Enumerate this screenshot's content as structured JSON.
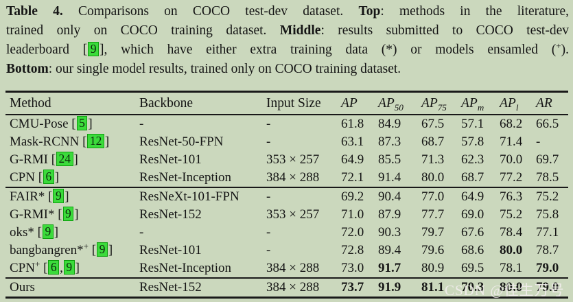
{
  "colors": {
    "background": "#cbd8bd",
    "text": "#151515",
    "citation_fill": "#3bdb3b",
    "citation_border": "#0e9f0e",
    "rule": "#191919",
    "watermark": "#f2ecee"
  },
  "caption": {
    "lines": [
      {
        "justify": true,
        "segments": [
          {
            "t": "b",
            "s": "Table 4."
          },
          {
            "t": "n",
            "s": " Comparisons on COCO test-dev dataset. "
          },
          {
            "t": "b",
            "s": "Top"
          },
          {
            "t": "n",
            "s": ": methods in the literature,"
          }
        ]
      },
      {
        "justify": true,
        "segments": [
          {
            "t": "n",
            "s": "trained only on COCO training dataset. "
          },
          {
            "t": "b",
            "s": "Middle"
          },
          {
            "t": "n",
            "s": ": results submitted to COCO test-dev"
          }
        ]
      },
      {
        "justify": true,
        "segments": [
          {
            "t": "n",
            "s": "leaderboard ["
          },
          {
            "t": "cite",
            "s": "9"
          },
          {
            "t": "n",
            "s": "], which have either extra training data (*) or models ensamled ("
          },
          {
            "t": "sup",
            "s": "+"
          },
          {
            "t": "n",
            "s": ")."
          }
        ]
      },
      {
        "justify": false,
        "segments": [
          {
            "t": "b",
            "s": "Bottom"
          },
          {
            "t": "n",
            "s": ": our single model results, trained only on COCO training dataset."
          }
        ]
      }
    ]
  },
  "table": {
    "headers": [
      {
        "label": "Method",
        "italic": false,
        "sub": ""
      },
      {
        "label": "Backbone",
        "italic": false,
        "sub": ""
      },
      {
        "label": "Input Size",
        "italic": false,
        "sub": ""
      },
      {
        "label": "AP",
        "italic": true,
        "sub": ""
      },
      {
        "label": "AP",
        "italic": true,
        "sub": "50"
      },
      {
        "label": "AP",
        "italic": true,
        "sub": "75"
      },
      {
        "label": "AP",
        "italic": true,
        "sub": "m"
      },
      {
        "label": "AP",
        "italic": true,
        "sub": "l"
      },
      {
        "label": "AR",
        "italic": true,
        "sub": ""
      }
    ],
    "group_breaks": [
      3,
      8
    ],
    "rows": [
      {
        "method": [
          {
            "t": "n",
            "s": "CMU-Pose ["
          },
          {
            "t": "cite",
            "s": "5"
          },
          {
            "t": "n",
            "s": "]"
          }
        ],
        "backbone": "-",
        "input": "-",
        "values": [
          "61.8",
          "84.9",
          "67.5",
          "57.1",
          "68.2",
          "66.5"
        ],
        "bold": [
          false,
          false,
          false,
          false,
          false,
          false
        ]
      },
      {
        "method": [
          {
            "t": "n",
            "s": "Mask-RCNN ["
          },
          {
            "t": "cite",
            "s": "12"
          },
          {
            "t": "n",
            "s": "]"
          }
        ],
        "backbone": "ResNet-50-FPN",
        "input": "-",
        "values": [
          "63.1",
          "87.3",
          "68.7",
          "57.8",
          "71.4",
          "-"
        ],
        "bold": [
          false,
          false,
          false,
          false,
          false,
          false
        ]
      },
      {
        "method": [
          {
            "t": "n",
            "s": "G-RMI ["
          },
          {
            "t": "cite",
            "s": "24"
          },
          {
            "t": "n",
            "s": "]"
          }
        ],
        "backbone": "ResNet-101",
        "input": "353 × 257",
        "values": [
          "64.9",
          "85.5",
          "71.3",
          "62.3",
          "70.0",
          "69.7"
        ],
        "bold": [
          false,
          false,
          false,
          false,
          false,
          false
        ]
      },
      {
        "method": [
          {
            "t": "n",
            "s": "CPN ["
          },
          {
            "t": "cite",
            "s": "6"
          },
          {
            "t": "n",
            "s": "]"
          }
        ],
        "backbone": "ResNet-Inception",
        "input": "384 × 288",
        "values": [
          "72.1",
          "91.4",
          "80.0",
          "68.7",
          "77.2",
          "78.5"
        ],
        "bold": [
          false,
          false,
          false,
          false,
          false,
          false
        ]
      },
      {
        "method": [
          {
            "t": "n",
            "s": "FAIR* ["
          },
          {
            "t": "cite",
            "s": "9"
          },
          {
            "t": "n",
            "s": "]"
          }
        ],
        "backbone": "ResNeXt-101-FPN",
        "input": "-",
        "values": [
          "69.2",
          "90.4",
          "77.0",
          "64.9",
          "76.3",
          "75.2"
        ],
        "bold": [
          false,
          false,
          false,
          false,
          false,
          false
        ]
      },
      {
        "method": [
          {
            "t": "n",
            "s": "G-RMI* ["
          },
          {
            "t": "cite",
            "s": "9"
          },
          {
            "t": "n",
            "s": "]"
          }
        ],
        "backbone": "ResNet-152",
        "input": "353 × 257",
        "values": [
          "71.0",
          "87.9",
          "77.7",
          "69.0",
          "75.2",
          "75.8"
        ],
        "bold": [
          false,
          false,
          false,
          false,
          false,
          false
        ]
      },
      {
        "method": [
          {
            "t": "n",
            "s": "oks* ["
          },
          {
            "t": "cite",
            "s": "9"
          },
          {
            "t": "n",
            "s": "]"
          }
        ],
        "backbone": "-",
        "input": "-",
        "values": [
          "72.0",
          "90.3",
          "79.7",
          "67.6",
          "78.4",
          "77.1"
        ],
        "bold": [
          false,
          false,
          false,
          false,
          false,
          false
        ]
      },
      {
        "method": [
          {
            "t": "n",
            "s": "bangbangren*"
          },
          {
            "t": "sup",
            "s": "+"
          },
          {
            "t": "n",
            "s": " ["
          },
          {
            "t": "cite",
            "s": "9"
          },
          {
            "t": "n",
            "s": "]"
          }
        ],
        "backbone": "ResNet-101",
        "input": "-",
        "values": [
          "72.8",
          "89.4",
          "79.6",
          "68.6",
          "80.0",
          "78.7"
        ],
        "bold": [
          false,
          false,
          false,
          false,
          true,
          false
        ]
      },
      {
        "method": [
          {
            "t": "n",
            "s": "CPN"
          },
          {
            "t": "sup",
            "s": "+"
          },
          {
            "t": "n",
            "s": " ["
          },
          {
            "t": "cite",
            "s": "6"
          },
          {
            "t": "n",
            "s": ","
          },
          {
            "t": "cite",
            "s": "9"
          },
          {
            "t": "n",
            "s": "]"
          }
        ],
        "backbone": "ResNet-Inception",
        "input": "384 × 288",
        "values": [
          "73.0",
          "91.7",
          "80.9",
          "69.5",
          "78.1",
          "79.0"
        ],
        "bold": [
          false,
          true,
          false,
          false,
          false,
          true
        ]
      },
      {
        "method": [
          {
            "t": "n",
            "s": "Ours"
          }
        ],
        "backbone": "ResNet-152",
        "input": "384 × 288",
        "values": [
          "73.7",
          "91.9",
          "81.1",
          "70.3",
          "80.0",
          "79.0"
        ],
        "bold": [
          true,
          true,
          true,
          true,
          true,
          true
        ]
      }
    ]
  },
  "watermark": {
    "text": "CSDN @佳生万号"
  }
}
